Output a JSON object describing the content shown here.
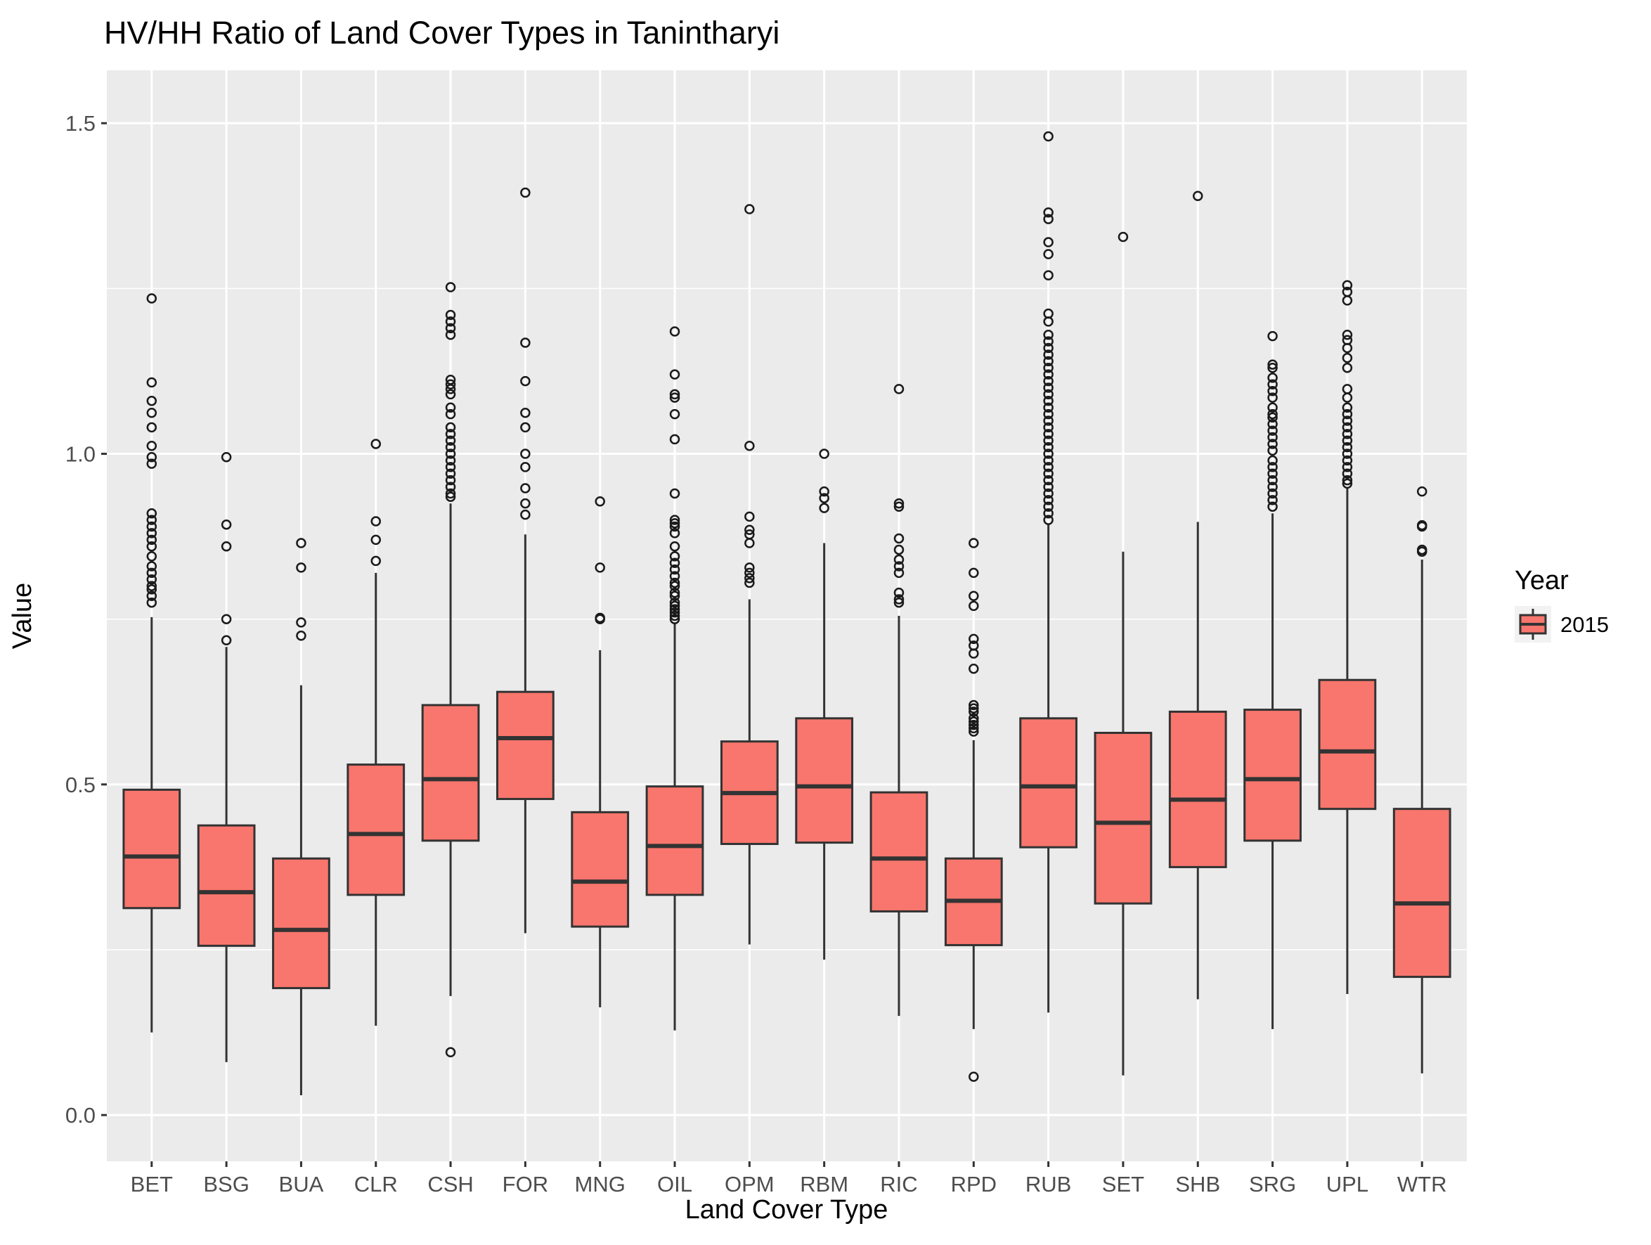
{
  "chart_data": {
    "type": "boxplot",
    "title": "HV/HH Ratio of Land Cover Types in Tanintharyi",
    "xlabel": "Land Cover Type",
    "ylabel": "Value",
    "ylim": [
      -0.07,
      1.58
    ],
    "yticks": [
      0.0,
      0.5,
      1.0,
      1.5
    ],
    "ytick_labels": [
      "0.0",
      "0.5",
      "1.0",
      "1.5"
    ],
    "grid": true,
    "legend": {
      "title": "Year",
      "position": "right",
      "entries": [
        {
          "label": "2015",
          "color": "#F8766D"
        }
      ]
    },
    "fill_color": "#F8766D",
    "categories": [
      "BET",
      "BSG",
      "BUA",
      "CLR",
      "CSH",
      "FOR",
      "MNG",
      "OIL",
      "OPM",
      "RBM",
      "RIC",
      "RPD",
      "RUB",
      "SET",
      "SHB",
      "SRG",
      "UPL",
      "WTR"
    ],
    "boxes": [
      {
        "category": "BET",
        "whisker_low": 0.125,
        "q1": 0.313,
        "median": 0.391,
        "q3": 0.492,
        "whisker_high": 0.753,
        "outliers": [
          1.235,
          1.108,
          1.08,
          1.062,
          1.04,
          1.012,
          0.995,
          0.985,
          0.91,
          0.9,
          0.89,
          0.88,
          0.87,
          0.86,
          0.845,
          0.83,
          0.82,
          0.81,
          0.8,
          0.795,
          0.785,
          0.775
        ]
      },
      {
        "category": "BSG",
        "whisker_low": 0.08,
        "q1": 0.256,
        "median": 0.337,
        "q3": 0.438,
        "whisker_high": 0.708,
        "outliers": [
          0.995,
          0.893,
          0.86,
          0.75,
          0.718
        ]
      },
      {
        "category": "BUA",
        "whisker_low": 0.03,
        "q1": 0.192,
        "median": 0.28,
        "q3": 0.388,
        "whisker_high": 0.65,
        "outliers": [
          0.865,
          0.828,
          0.745,
          0.725
        ]
      },
      {
        "category": "CLR",
        "whisker_low": 0.135,
        "q1": 0.333,
        "median": 0.425,
        "q3": 0.53,
        "whisker_high": 0.82,
        "outliers": [
          1.015,
          0.898,
          0.87,
          0.838
        ]
      },
      {
        "category": "CSH",
        "whisker_low": 0.18,
        "q1": 0.415,
        "median": 0.508,
        "q3": 0.62,
        "whisker_high": 0.925,
        "outliers": [
          1.252,
          1.21,
          1.2,
          1.19,
          1.18,
          1.112,
          1.105,
          1.098,
          1.09,
          1.07,
          1.06,
          1.04,
          1.03,
          1.02,
          1.01,
          1.0,
          0.99,
          0.98,
          0.97,
          0.96,
          0.95,
          0.94,
          0.935,
          0.095
        ]
      },
      {
        "category": "FOR",
        "whisker_low": 0.275,
        "q1": 0.478,
        "median": 0.57,
        "q3": 0.64,
        "whisker_high": 0.878,
        "outliers": [
          1.395,
          1.168,
          1.11,
          1.062,
          1.04,
          1.0,
          0.98,
          0.948,
          0.925,
          0.908
        ]
      },
      {
        "category": "MNG",
        "whisker_low": 0.163,
        "q1": 0.285,
        "median": 0.353,
        "q3": 0.458,
        "whisker_high": 0.703,
        "outliers": [
          0.928,
          0.828,
          0.752,
          0.75
        ]
      },
      {
        "category": "OIL",
        "whisker_low": 0.128,
        "q1": 0.333,
        "median": 0.407,
        "q3": 0.497,
        "whisker_high": 0.745,
        "outliers": [
          1.185,
          1.12,
          1.09,
          1.085,
          1.06,
          1.022,
          0.94,
          0.9,
          0.895,
          0.89,
          0.88,
          0.86,
          0.845,
          0.835,
          0.825,
          0.815,
          0.805,
          0.8,
          0.79,
          0.785,
          0.775,
          0.77,
          0.765,
          0.76,
          0.755,
          0.75
        ]
      },
      {
        "category": "OPM",
        "whisker_low": 0.258,
        "q1": 0.41,
        "median": 0.487,
        "q3": 0.565,
        "whisker_high": 0.78,
        "outliers": [
          1.37,
          1.012,
          0.905,
          0.885,
          0.878,
          0.865,
          0.828,
          0.82,
          0.812,
          0.805
        ]
      },
      {
        "category": "RBM",
        "whisker_low": 0.235,
        "q1": 0.412,
        "median": 0.497,
        "q3": 0.6,
        "whisker_high": 0.865,
        "outliers": [
          1.0,
          0.943,
          0.933,
          0.918
        ]
      },
      {
        "category": "RIC",
        "whisker_low": 0.15,
        "q1": 0.308,
        "median": 0.388,
        "q3": 0.488,
        "whisker_high": 0.755,
        "outliers": [
          1.098,
          0.925,
          0.92,
          0.872,
          0.855,
          0.84,
          0.83,
          0.82,
          0.79,
          0.78,
          0.775
        ]
      },
      {
        "category": "RPD",
        "whisker_low": 0.13,
        "q1": 0.257,
        "median": 0.324,
        "q3": 0.388,
        "whisker_high": 0.567,
        "outliers": [
          0.865,
          0.82,
          0.785,
          0.77,
          0.72,
          0.71,
          0.698,
          0.675,
          0.62,
          0.615,
          0.61,
          0.6,
          0.595,
          0.59,
          0.585,
          0.58,
          0.058
        ]
      },
      {
        "category": "RUB",
        "whisker_low": 0.155,
        "q1": 0.405,
        "median": 0.497,
        "q3": 0.6,
        "whisker_high": 0.893,
        "outliers": [
          1.48,
          1.365,
          1.355,
          1.32,
          1.302,
          1.27,
          1.212,
          1.2,
          1.18,
          1.17,
          1.16,
          1.15,
          1.14,
          1.13,
          1.12,
          1.11,
          1.1,
          1.09,
          1.08,
          1.07,
          1.06,
          1.05,
          1.04,
          1.03,
          1.02,
          1.01,
          1.0,
          0.99,
          0.98,
          0.97,
          0.96,
          0.95,
          0.94,
          0.93,
          0.92,
          0.91,
          0.9
        ]
      },
      {
        "category": "SET",
        "whisker_low": 0.06,
        "q1": 0.32,
        "median": 0.442,
        "q3": 0.578,
        "whisker_high": 0.852,
        "outliers": [
          1.328
        ]
      },
      {
        "category": "SHB",
        "whisker_low": 0.175,
        "q1": 0.375,
        "median": 0.477,
        "q3": 0.61,
        "whisker_high": 0.897,
        "outliers": [
          1.39
        ]
      },
      {
        "category": "SRG",
        "whisker_low": 0.13,
        "q1": 0.415,
        "median": 0.508,
        "q3": 0.613,
        "whisker_high": 0.91,
        "outliers": [
          1.178,
          1.135,
          1.13,
          1.115,
          1.105,
          1.095,
          1.085,
          1.07,
          1.06,
          1.055,
          1.045,
          1.035,
          1.025,
          1.015,
          1.005,
          0.99,
          0.98,
          0.97,
          0.96,
          0.95,
          0.94,
          0.93,
          0.92
        ]
      },
      {
        "category": "UPL",
        "whisker_low": 0.183,
        "q1": 0.463,
        "median": 0.55,
        "q3": 0.658,
        "whisker_high": 0.95,
        "outliers": [
          1.255,
          1.245,
          1.232,
          1.18,
          1.172,
          1.16,
          1.145,
          1.13,
          1.098,
          1.085,
          1.07,
          1.06,
          1.05,
          1.04,
          1.03,
          1.02,
          1.01,
          1.0,
          0.99,
          0.98,
          0.97,
          0.96,
          0.955
        ]
      },
      {
        "category": "WTR",
        "whisker_low": 0.063,
        "q1": 0.209,
        "median": 0.32,
        "q3": 0.463,
        "whisker_high": 0.84,
        "outliers": [
          0.943,
          0.892,
          0.89,
          0.855,
          0.852
        ]
      }
    ]
  }
}
